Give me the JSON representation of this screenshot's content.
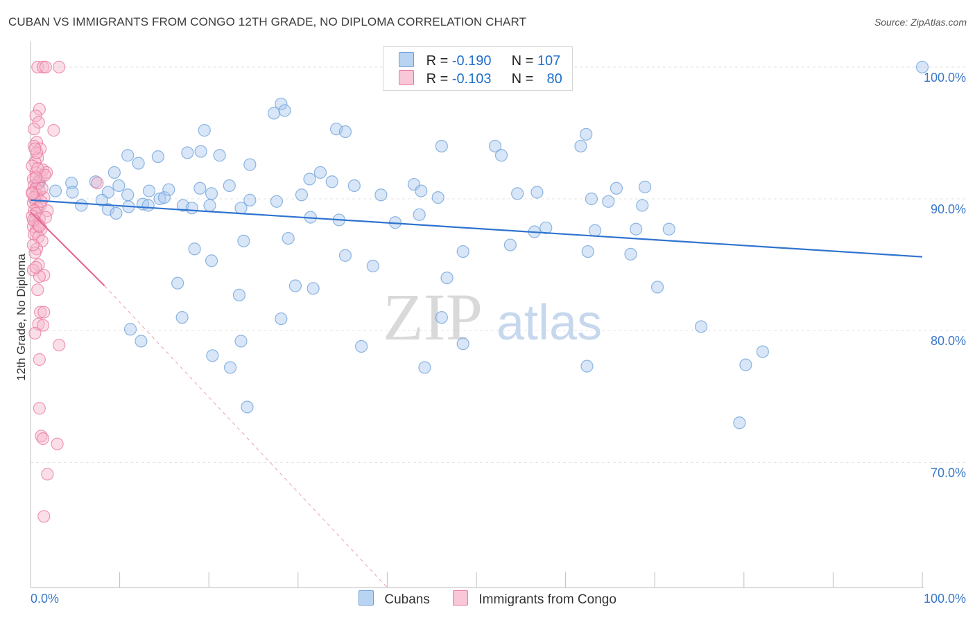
{
  "title": "CUBAN VS IMMIGRANTS FROM CONGO 12TH GRADE, NO DIPLOMA CORRELATION CHART",
  "source": "Source: ZipAtlas.com",
  "watermark": {
    "zip": "ZIP",
    "atlas": "atlas"
  },
  "legend": {
    "r_label": "R =",
    "n_label": "N =",
    "rows": [
      {
        "r": "-0.190",
        "n": "107",
        "color": "#8db6e8"
      },
      {
        "r": "-0.103",
        "n": "80",
        "color": "#f4a6c0"
      }
    ]
  },
  "bottom_legend": [
    "Cubans",
    "Immigrants from Congo"
  ],
  "colors": {
    "blue": "#6a9fd8",
    "blue_fill": "#a9c8f0",
    "pink": "#e8779c",
    "pink_fill": "#f7b8cc",
    "axis_text": "#3a78c9"
  },
  "chart_data": {
    "type": "scatter",
    "xlabel": "",
    "ylabel": "12th Grade, No Diploma",
    "x_tick_labels": [
      "0.0%",
      "100.0%"
    ],
    "y_tick_labels": [
      "100.0%",
      "90.0%",
      "80.0%",
      "70.0%"
    ],
    "y_ticks": [
      100,
      90,
      80,
      70
    ],
    "xlim": [
      0,
      100
    ],
    "ylim": [
      60.5,
      101.2
    ],
    "grid": true,
    "series": [
      {
        "name": "Cubans",
        "color": "#6a9fd8",
        "r": -0.19,
        "n": 107,
        "trend": [
          [
            0,
            89.9
          ],
          [
            100,
            85.6
          ]
        ],
        "points": [
          [
            100,
            100
          ],
          [
            28.1,
            97.2
          ],
          [
            27.3,
            96.5
          ],
          [
            28.5,
            96.7
          ],
          [
            19.5,
            95.2
          ],
          [
            34.3,
            95.3
          ],
          [
            35.3,
            95.1
          ],
          [
            62.3,
            94.9
          ],
          [
            46.1,
            94.0
          ],
          [
            52.1,
            94.0
          ],
          [
            61.7,
            94.0
          ],
          [
            52.8,
            93.3
          ],
          [
            10.9,
            93.3
          ],
          [
            14.3,
            93.2
          ],
          [
            17.6,
            93.5
          ],
          [
            19.1,
            93.6
          ],
          [
            21.2,
            93.3
          ],
          [
            24.6,
            92.6
          ],
          [
            12.1,
            92.7
          ],
          [
            32.5,
            92.0
          ],
          [
            9.4,
            92.0
          ],
          [
            31.3,
            91.5
          ],
          [
            7.3,
            91.3
          ],
          [
            4.6,
            91.2
          ],
          [
            1.0,
            91.2
          ],
          [
            0.8,
            91.1
          ],
          [
            22.3,
            91.0
          ],
          [
            9.9,
            91.0
          ],
          [
            33.8,
            91.3
          ],
          [
            36.3,
            91.0
          ],
          [
            43.0,
            91.1
          ],
          [
            19.0,
            90.8
          ],
          [
            2.8,
            90.6
          ],
          [
            4.7,
            90.5
          ],
          [
            8.7,
            90.5
          ],
          [
            10.9,
            90.3
          ],
          [
            14.5,
            90.0
          ],
          [
            15.0,
            90.1
          ],
          [
            20.3,
            90.4
          ],
          [
            30.4,
            90.3
          ],
          [
            24.6,
            89.9
          ],
          [
            27.6,
            89.8
          ],
          [
            39.3,
            90.3
          ],
          [
            45.7,
            90.1
          ],
          [
            43.8,
            90.6
          ],
          [
            54.6,
            90.4
          ],
          [
            56.8,
            90.5
          ],
          [
            62.9,
            90.0
          ],
          [
            64.8,
            89.8
          ],
          [
            68.6,
            89.5
          ],
          [
            11.0,
            89.4
          ],
          [
            12.6,
            89.6
          ],
          [
            13.2,
            89.5
          ],
          [
            17.1,
            89.5
          ],
          [
            18.1,
            89.3
          ],
          [
            20.1,
            89.5
          ],
          [
            23.6,
            89.3
          ],
          [
            8.7,
            89.2
          ],
          [
            9.6,
            88.9
          ],
          [
            31.4,
            88.6
          ],
          [
            34.6,
            88.4
          ],
          [
            43.6,
            88.8
          ],
          [
            40.9,
            88.2
          ],
          [
            56.5,
            87.5
          ],
          [
            57.8,
            87.8
          ],
          [
            63.3,
            87.6
          ],
          [
            67.9,
            87.7
          ],
          [
            71.6,
            87.7
          ],
          [
            23.9,
            86.8
          ],
          [
            28.9,
            87.0
          ],
          [
            53.8,
            86.5
          ],
          [
            18.4,
            86.2
          ],
          [
            20.3,
            85.3
          ],
          [
            35.3,
            85.7
          ],
          [
            48.5,
            86.0
          ],
          [
            62.5,
            86.0
          ],
          [
            67.3,
            85.8
          ],
          [
            38.4,
            84.9
          ],
          [
            46.7,
            84.0
          ],
          [
            16.5,
            83.6
          ],
          [
            29.7,
            83.4
          ],
          [
            31.7,
            83.2
          ],
          [
            70.3,
            83.3
          ],
          [
            23.4,
            82.7
          ],
          [
            17.0,
            81.0
          ],
          [
            28.1,
            80.9
          ],
          [
            46.1,
            81.0
          ],
          [
            11.2,
            80.1
          ],
          [
            75.2,
            80.3
          ],
          [
            12.4,
            79.2
          ],
          [
            23.6,
            79.2
          ],
          [
            20.4,
            78.1
          ],
          [
            37.1,
            78.8
          ],
          [
            48.5,
            79.0
          ],
          [
            82.1,
            78.4
          ],
          [
            62.4,
            77.3
          ],
          [
            22.4,
            77.2
          ],
          [
            80.2,
            77.4
          ],
          [
            44.2,
            77.2
          ],
          [
            8.0,
            89.9
          ],
          [
            5.7,
            89.5
          ],
          [
            13.3,
            90.6
          ],
          [
            65.7,
            90.8
          ],
          [
            15.5,
            90.7
          ],
          [
            68.9,
            90.9
          ],
          [
            24.3,
            74.2
          ],
          [
            79.5,
            73.0
          ]
        ]
      },
      {
        "name": "Immigrants from Congo",
        "color": "#e8779c",
        "r": -0.103,
        "n": 80,
        "trend": [
          [
            0,
            89.0
          ],
          [
            8.3,
            83.4
          ]
        ],
        "trend_ext": [
          [
            8.3,
            83.4
          ],
          [
            40,
            60.5
          ]
        ],
        "points": [
          [
            0.8,
            100
          ],
          [
            1.4,
            100
          ],
          [
            3.2,
            100
          ],
          [
            1.7,
            100
          ],
          [
            1.0,
            96.8
          ],
          [
            0.6,
            96.3
          ],
          [
            0.9,
            95.8
          ],
          [
            2.6,
            95.2
          ],
          [
            0.7,
            94.3
          ],
          [
            0.4,
            94.0
          ],
          [
            1.1,
            93.8
          ],
          [
            0.8,
            93.1
          ],
          [
            0.5,
            92.8
          ],
          [
            1.4,
            92.2
          ],
          [
            0.6,
            92.0
          ],
          [
            1.2,
            91.7
          ],
          [
            0.3,
            91.5
          ],
          [
            0.9,
            91.3
          ],
          [
            0.4,
            91.0
          ],
          [
            0.6,
            90.8
          ],
          [
            1.0,
            90.6
          ],
          [
            0.2,
            90.5
          ],
          [
            0.7,
            90.3
          ],
          [
            1.5,
            90.1
          ],
          [
            0.5,
            89.9
          ],
          [
            0.3,
            89.7
          ],
          [
            1.1,
            89.5
          ],
          [
            0.8,
            89.3
          ],
          [
            0.4,
            89.1
          ],
          [
            0.6,
            88.9
          ],
          [
            0.2,
            88.7
          ],
          [
            1.0,
            88.5
          ],
          [
            0.5,
            88.3
          ],
          [
            0.8,
            88.1
          ],
          [
            0.3,
            87.9
          ],
          [
            1.2,
            87.7
          ],
          [
            0.6,
            87.5
          ],
          [
            0.4,
            87.3
          ],
          [
            0.9,
            87.1
          ],
          [
            1.3,
            86.8
          ],
          [
            0.7,
            86.2
          ],
          [
            0.5,
            85.9
          ],
          [
            0.9,
            85.0
          ],
          [
            0.3,
            84.6
          ],
          [
            1.5,
            84.2
          ],
          [
            1.0,
            84.1
          ],
          [
            0.8,
            83.1
          ],
          [
            1.1,
            81.4
          ],
          [
            1.5,
            81.4
          ],
          [
            0.9,
            80.5
          ],
          [
            1.4,
            80.4
          ],
          [
            0.5,
            79.8
          ],
          [
            3.2,
            78.9
          ],
          [
            1.0,
            77.8
          ],
          [
            1.0,
            74.1
          ],
          [
            1.2,
            72.0
          ],
          [
            3.0,
            71.4
          ],
          [
            1.4,
            71.8
          ],
          [
            1.9,
            69.1
          ],
          [
            1.5,
            65.9
          ],
          [
            7.5,
            91.2
          ],
          [
            0.2,
            92.5
          ],
          [
            1.8,
            92.0
          ],
          [
            0.4,
            95.3
          ],
          [
            0.7,
            93.5
          ],
          [
            1.9,
            89.1
          ],
          [
            0.3,
            86.5
          ],
          [
            0.6,
            84.8
          ],
          [
            1.3,
            90.8
          ],
          [
            0.9,
            88.0
          ],
          [
            0.4,
            90.1
          ],
          [
            1.6,
            91.8
          ],
          [
            0.8,
            92.3
          ],
          [
            0.3,
            88.4
          ],
          [
            1.0,
            87.9
          ],
          [
            0.6,
            91.6
          ],
          [
            1.2,
            89.8
          ],
          [
            0.5,
            93.8
          ],
          [
            0.2,
            90.4
          ],
          [
            1.7,
            88.6
          ]
        ]
      }
    ]
  }
}
